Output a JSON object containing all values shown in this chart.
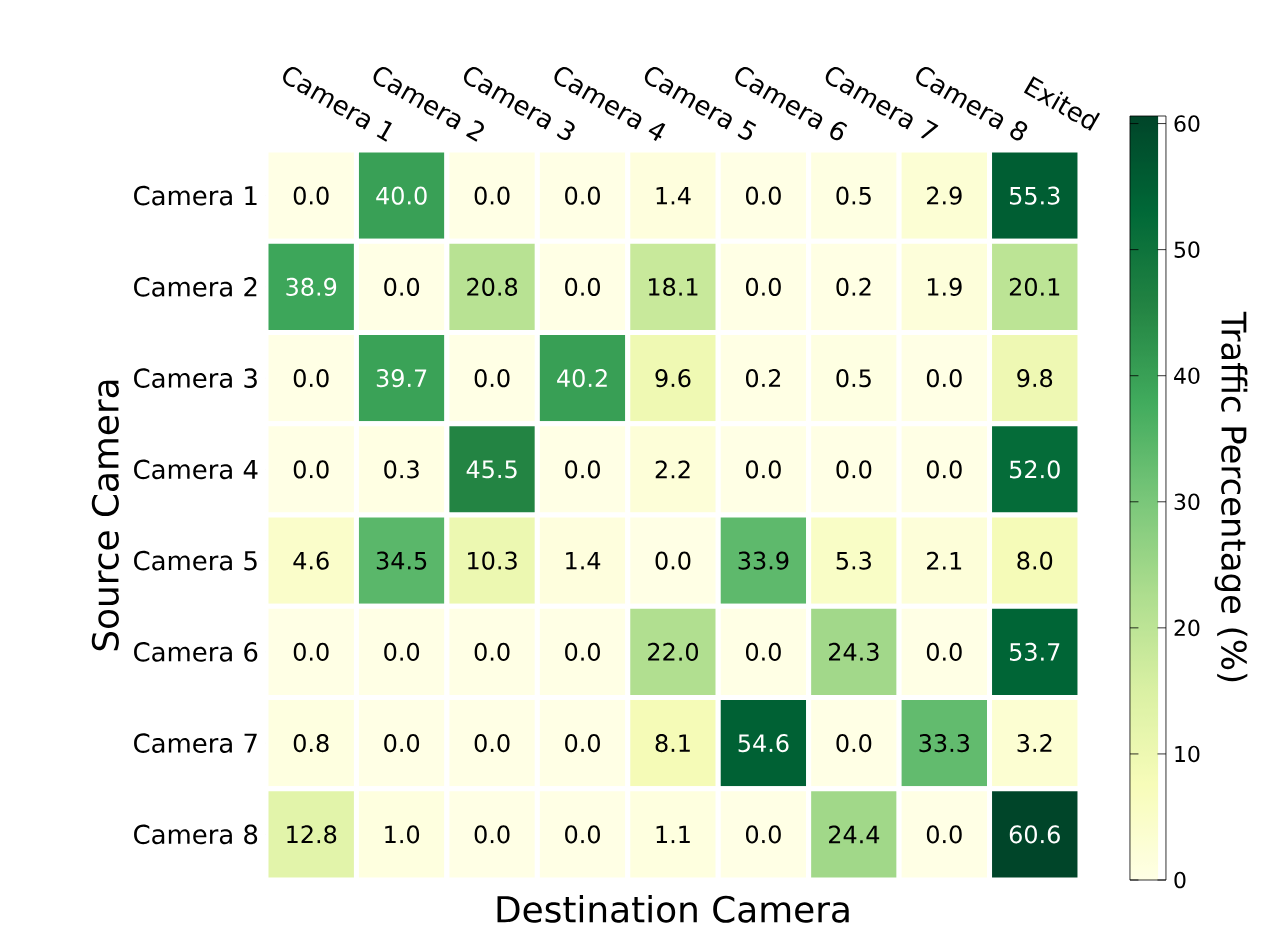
{
  "chart_data": {
    "type": "heatmap",
    "xlabel": "Destination Camera",
    "ylabel": "Source Camera",
    "clabel": "Traffic Percentage (%)",
    "categories": [
      "Camera 1",
      "Camera 2",
      "Camera 3",
      "Camera 4",
      "Camera 5",
      "Camera 6",
      "Camera 7",
      "Camera 8",
      "Exited"
    ],
    "y_categories": [
      "Camera 1",
      "Camera 2",
      "Camera 3",
      "Camera 4",
      "Camera 5",
      "Camera 6",
      "Camera 7",
      "Camera 8"
    ],
    "cells": [
      [
        0.0,
        40.0,
        0.0,
        0.0,
        1.4,
        0.0,
        0.5,
        2.9,
        55.3
      ],
      [
        38.9,
        0.0,
        20.8,
        0.0,
        18.1,
        0.0,
        0.2,
        1.9,
        20.1
      ],
      [
        0.0,
        39.7,
        0.0,
        40.2,
        9.6,
        0.2,
        0.5,
        0.0,
        9.8
      ],
      [
        0.0,
        0.3,
        45.5,
        0.0,
        2.2,
        0.0,
        0.0,
        0.0,
        52.0
      ],
      [
        4.6,
        34.5,
        10.3,
        1.4,
        0.0,
        33.9,
        5.3,
        2.1,
        8.0
      ],
      [
        0.0,
        0.0,
        0.0,
        0.0,
        22.0,
        0.0,
        24.3,
        0.0,
        53.7
      ],
      [
        0.8,
        0.0,
        0.0,
        0.0,
        8.1,
        54.6,
        0.0,
        33.3,
        3.2
      ],
      [
        12.8,
        1.0,
        0.0,
        0.0,
        1.1,
        0.0,
        24.4,
        0.0,
        60.6
      ]
    ],
    "cell_labels": [
      [
        "0.0",
        "40.0",
        "0.0",
        "0.0",
        "1.4",
        "0.0",
        "0.5",
        "2.9",
        "55.3"
      ],
      [
        "38.9",
        "0.0",
        "20.8",
        "0.0",
        "18.1",
        "0.0",
        "0.2",
        "1.9",
        "20.1"
      ],
      [
        "0.0",
        "39.7",
        "0.0",
        "40.2",
        "9.6",
        "0.2",
        "0.5",
        "0.0",
        "9.8"
      ],
      [
        "0.0",
        "0.3",
        "45.5",
        "0.0",
        "2.2",
        "0.0",
        "0.0",
        "0.0",
        "52.0"
      ],
      [
        "4.6",
        "34.5",
        "10.3",
        "1.4",
        "0.0",
        "33.9",
        "5.3",
        "2.1",
        "8.0"
      ],
      [
        "0.0",
        "0.0",
        "0.0",
        "0.0",
        "22.0",
        "0.0",
        "24.3",
        "0.0",
        "53.7"
      ],
      [
        "0.8",
        "0.0",
        "0.0",
        "0.0",
        "8.1",
        "54.6",
        "0.0",
        "33.3",
        "3.2"
      ],
      [
        "12.8",
        "1.0",
        "0.0",
        "0.0",
        "1.1",
        "0.0",
        "24.4",
        "0.0",
        "60.6"
      ]
    ],
    "clim": [
      0,
      60.6
    ],
    "cticks": [
      0,
      10,
      20,
      30,
      40,
      50,
      60
    ]
  }
}
